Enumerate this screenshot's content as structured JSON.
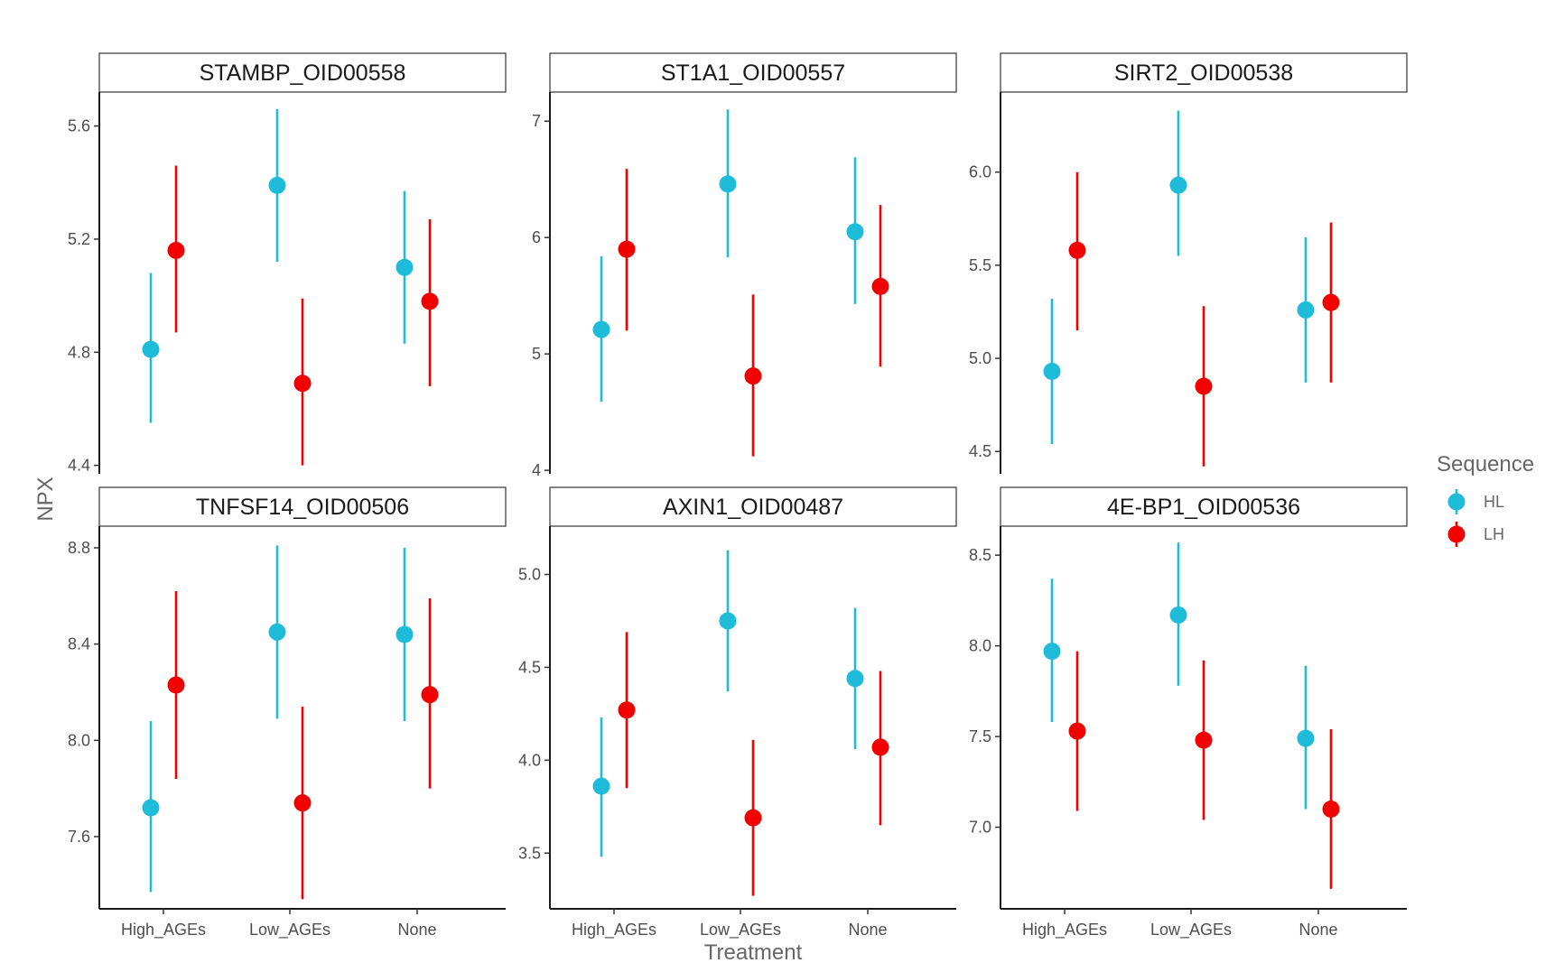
{
  "chart_data": {
    "type": "scatter",
    "subtype": "point-range facets",
    "xlabel": "Treatment",
    "ylabel": "NPX",
    "categories": [
      "High_AGEs",
      "Low_AGEs",
      "None"
    ],
    "legend": {
      "title": "Sequence",
      "placement": "right",
      "entries": [
        {
          "name": "HL",
          "color": "#1fbcd9"
        },
        {
          "name": "LH",
          "color": "#f20000"
        }
      ]
    },
    "grid": false,
    "panels": [
      {
        "title": "STAMBP_OID00558",
        "ylim": [
          4.37,
          5.72
        ],
        "yticks": [
          "4.4",
          "4.8",
          "5.2",
          "5.6"
        ],
        "series": [
          {
            "name": "HL",
            "values": [
              4.81,
              5.39,
              5.1
            ],
            "lower": [
              4.55,
              5.12,
              4.83
            ],
            "upper": [
              5.08,
              5.66,
              5.37
            ]
          },
          {
            "name": "LH",
            "values": [
              5.16,
              4.69,
              4.98
            ],
            "lower": [
              4.87,
              4.4,
              4.68
            ],
            "upper": [
              5.46,
              4.99,
              5.27
            ]
          }
        ]
      },
      {
        "title": "ST1A1_OID00557",
        "ylim": [
          3.97,
          7.25
        ],
        "yticks": [
          "4",
          "5",
          "6",
          "7"
        ],
        "series": [
          {
            "name": "HL",
            "values": [
              5.21,
              6.46,
              6.05
            ],
            "lower": [
              4.59,
              5.83,
              5.43
            ],
            "upper": [
              5.84,
              7.1,
              6.69
            ]
          },
          {
            "name": "LH",
            "values": [
              5.9,
              4.81,
              5.58
            ],
            "lower": [
              5.2,
              4.12,
              4.89
            ],
            "upper": [
              6.59,
              5.51,
              6.28
            ]
          }
        ]
      },
      {
        "title": "SIRT2_OID00538",
        "ylim": [
          4.38,
          6.43
        ],
        "yticks": [
          "4.5",
          "5.0",
          "5.5",
          "6.0"
        ],
        "series": [
          {
            "name": "HL",
            "values": [
              4.93,
              5.93,
              5.26
            ],
            "lower": [
              4.54,
              5.55,
              4.87
            ],
            "upper": [
              5.32,
              6.33,
              5.65
            ]
          },
          {
            "name": "LH",
            "values": [
              5.58,
              4.85,
              5.3
            ],
            "lower": [
              5.15,
              4.42,
              4.87
            ],
            "upper": [
              6.0,
              5.28,
              5.73
            ]
          }
        ]
      },
      {
        "title": "TNFSF14_OID00506",
        "ylim": [
          7.3,
          8.89
        ],
        "yticks": [
          "7.6",
          "8.0",
          "8.4",
          "8.8"
        ],
        "series": [
          {
            "name": "HL",
            "values": [
              7.72,
              8.45,
              8.44
            ],
            "lower": [
              7.37,
              8.09,
              8.08
            ],
            "upper": [
              8.08,
              8.81,
              8.8
            ]
          },
          {
            "name": "LH",
            "values": [
              8.23,
              7.74,
              8.19
            ],
            "lower": [
              7.84,
              7.34,
              7.8
            ],
            "upper": [
              8.62,
              8.14,
              8.59
            ]
          }
        ]
      },
      {
        "title": "AXIN1_OID00487",
        "ylim": [
          3.2,
          5.26
        ],
        "yticks": [
          "3.5",
          "4.0",
          "4.5",
          "5.0"
        ],
        "series": [
          {
            "name": "HL",
            "values": [
              3.86,
              4.75,
              4.44
            ],
            "lower": [
              3.48,
              4.37,
              4.06
            ],
            "upper": [
              4.23,
              5.13,
              4.82
            ]
          },
          {
            "name": "LH",
            "values": [
              4.27,
              3.69,
              4.07
            ],
            "lower": [
              3.85,
              3.27,
              3.65
            ],
            "upper": [
              4.69,
              4.11,
              4.48
            ]
          }
        ]
      },
      {
        "title": "4E-BP1_OID00536",
        "ylim": [
          6.55,
          8.66
        ],
        "yticks": [
          "7.0",
          "7.5",
          "8.0",
          "8.5"
        ],
        "series": [
          {
            "name": "HL",
            "values": [
              7.97,
              8.17,
              7.49
            ],
            "lower": [
              7.58,
              7.78,
              7.1
            ],
            "upper": [
              8.37,
              8.57,
              7.89
            ]
          },
          {
            "name": "LH",
            "values": [
              7.53,
              7.48,
              7.1
            ],
            "lower": [
              7.09,
              7.04,
              6.66
            ],
            "upper": [
              7.97,
              7.92,
              7.54
            ]
          }
        ]
      }
    ]
  }
}
